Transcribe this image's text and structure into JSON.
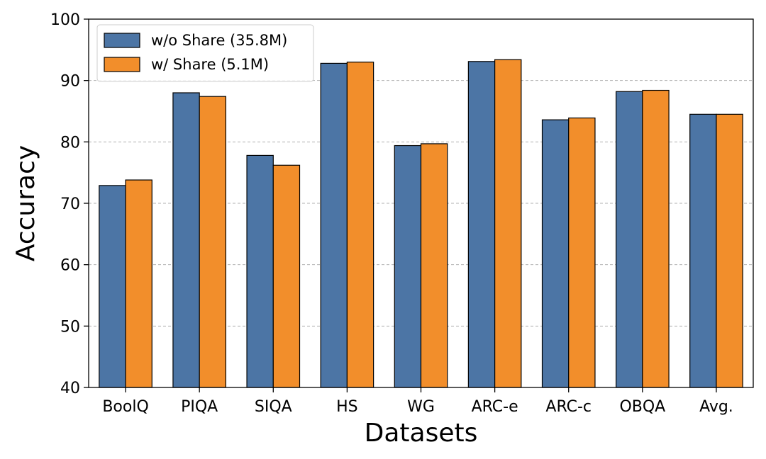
{
  "chart_data": {
    "type": "bar",
    "title": "",
    "xlabel": "Datasets",
    "ylabel": "Accuracy",
    "ylim": [
      40,
      100
    ],
    "yticks": [
      "40",
      "50",
      "60",
      "70",
      "80",
      "90",
      "100"
    ],
    "grid": "horizontal dashed",
    "legend_position": "top-left",
    "categories": [
      "BoolQ",
      "PIQA",
      "SIQA",
      "HS",
      "WG",
      "ARC-e",
      "ARC-c",
      "OBQA",
      "Avg."
    ],
    "series": [
      {
        "name": "w/o Share (35.8M)",
        "color": "#4c75a5",
        "values": [
          72.9,
          88.0,
          77.8,
          92.8,
          79.4,
          93.1,
          83.6,
          88.2,
          84.5
        ]
      },
      {
        "name": "w/ Share (5.1M)",
        "color": "#f28e2b",
        "values": [
          73.8,
          87.4,
          76.2,
          93.0,
          79.7,
          93.4,
          83.9,
          88.4,
          84.5
        ]
      }
    ]
  }
}
